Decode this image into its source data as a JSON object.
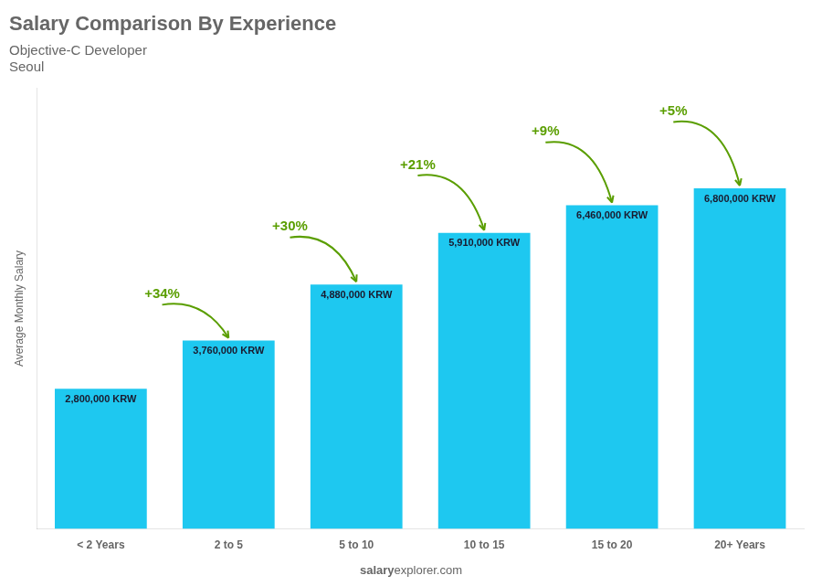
{
  "chart_data": {
    "type": "bar",
    "title": "Salary Comparison By Experience",
    "subtitle": [
      "Objective-C Developer",
      "Seoul"
    ],
    "categories": [
      "< 2 Years",
      "2 to 5",
      "5 to 10",
      "10 to 15",
      "15 to 20",
      "20+ Years"
    ],
    "values": [
      2800000,
      3760000,
      4880000,
      5910000,
      6460000,
      6800000
    ],
    "value_labels": [
      "2,800,000 KRW",
      "3,760,000 KRW",
      "4,880,000 KRW",
      "5,910,000 KRW",
      "6,460,000 KRW",
      "6,800,000 KRW"
    ],
    "data_labels": true,
    "color": "#1EC8F0",
    "ylabel": "Average Monthly Salary",
    "annotations": [
      "+34%",
      "+30%",
      "+21%",
      "+9%",
      "+5%"
    ],
    "footer": [
      "salary",
      "explorer.com"
    ],
    "ylim": [
      0,
      8800000
    ],
    "tick_labels": "x",
    "grid": false
  }
}
